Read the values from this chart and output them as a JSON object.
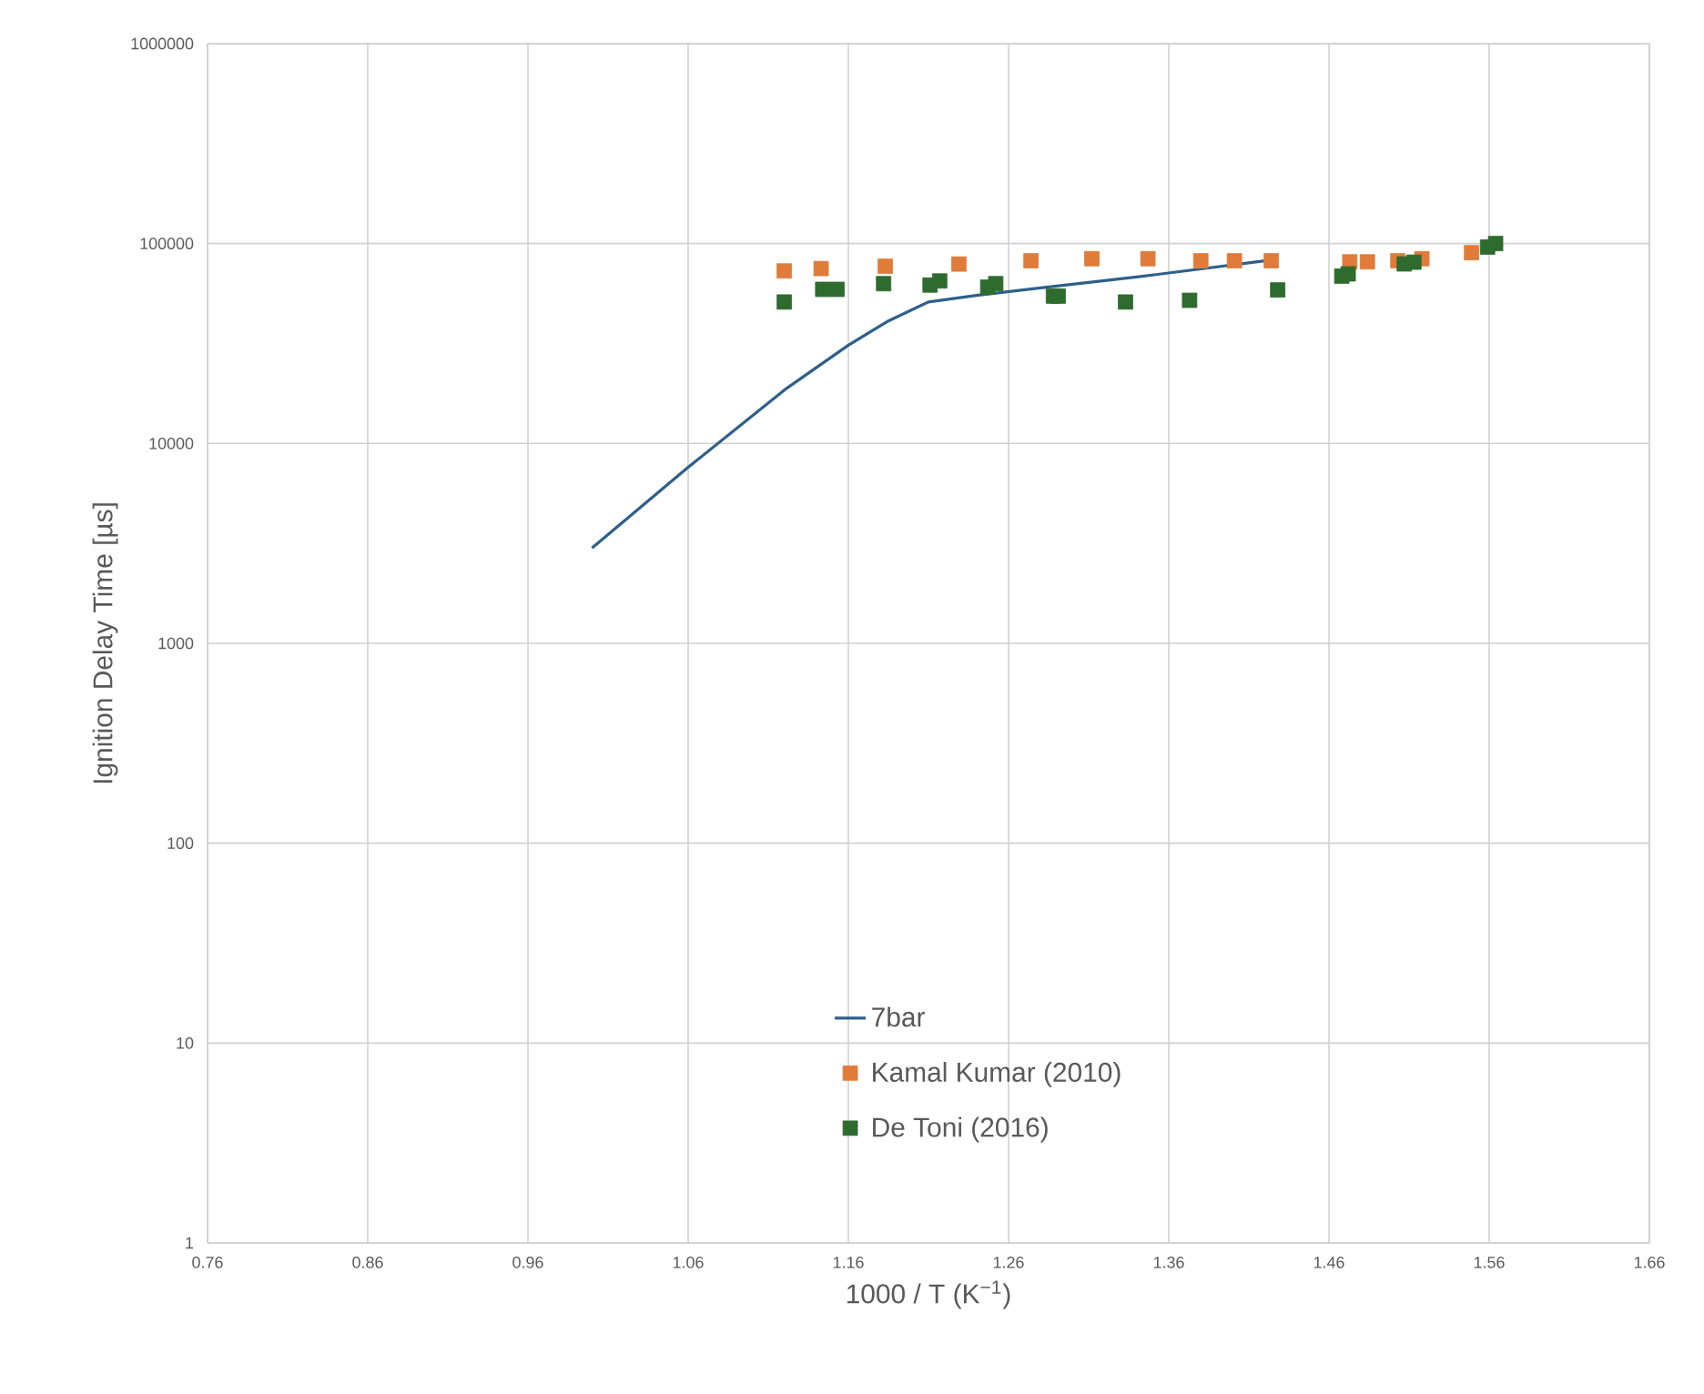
{
  "chart_data": {
    "type": "scatter",
    "xlabel": "1000 / T (K$^{−1}$)",
    "ylabel": "Ignition Delay Time [µs]",
    "log": "y",
    "grid": true,
    "legend": "bottom",
    "xlim": [
      0.76,
      1.66
    ],
    "xticks": [
      0.76,
      0.86,
      0.96,
      1.06,
      1.16,
      1.26,
      1.36,
      1.46,
      1.56,
      1.66
    ],
    "ylim": [
      1,
      1000000
    ],
    "yticks": [
      1,
      10,
      100,
      1000,
      10000,
      100000,
      1000000
    ],
    "series": [
      {
        "name": "7bar",
        "type": "line",
        "marker": "none",
        "color": "#2e5f8a",
        "x": [
          1.0,
          1.06,
          1.12,
          1.16,
          1.185,
          1.21,
          1.24,
          1.28,
          1.34,
          1.42
        ],
        "values": [
          3000,
          7600,
          18500,
          31000,
          41000,
          51000,
          55000,
          60000,
          68000,
          82000
        ]
      },
      {
        "name": "Kamal Kumar (2010)",
        "marker": "square",
        "color": "#e07b39",
        "x": [
          1.12,
          1.143,
          1.183,
          1.229,
          1.274,
          1.312,
          1.347,
          1.38,
          1.401,
          1.424,
          1.473,
          1.484,
          1.503,
          1.518,
          1.549
        ],
        "values": [
          73000,
          75000,
          77000,
          79000,
          82000,
          84000,
          84000,
          82000,
          82000,
          82000,
          81000,
          81000,
          82000,
          84000,
          90000
        ]
      },
      {
        "name": "De Toni (2016)",
        "marker": "square",
        "color": "#2e6b2e",
        "x": [
          1.12,
          1.144,
          1.153,
          1.182,
          1.211,
          1.217,
          1.247,
          1.252,
          1.288,
          1.291,
          1.333,
          1.373,
          1.428,
          1.468,
          1.472,
          1.507,
          1.513,
          1.559,
          1.564
        ],
        "values": [
          51000,
          59000,
          59000,
          63000,
          62000,
          65000,
          60500,
          63000,
          54600,
          54600,
          51000,
          52000,
          58600,
          68700,
          70500,
          79100,
          80700,
          96000,
          100000
        ]
      }
    ]
  }
}
